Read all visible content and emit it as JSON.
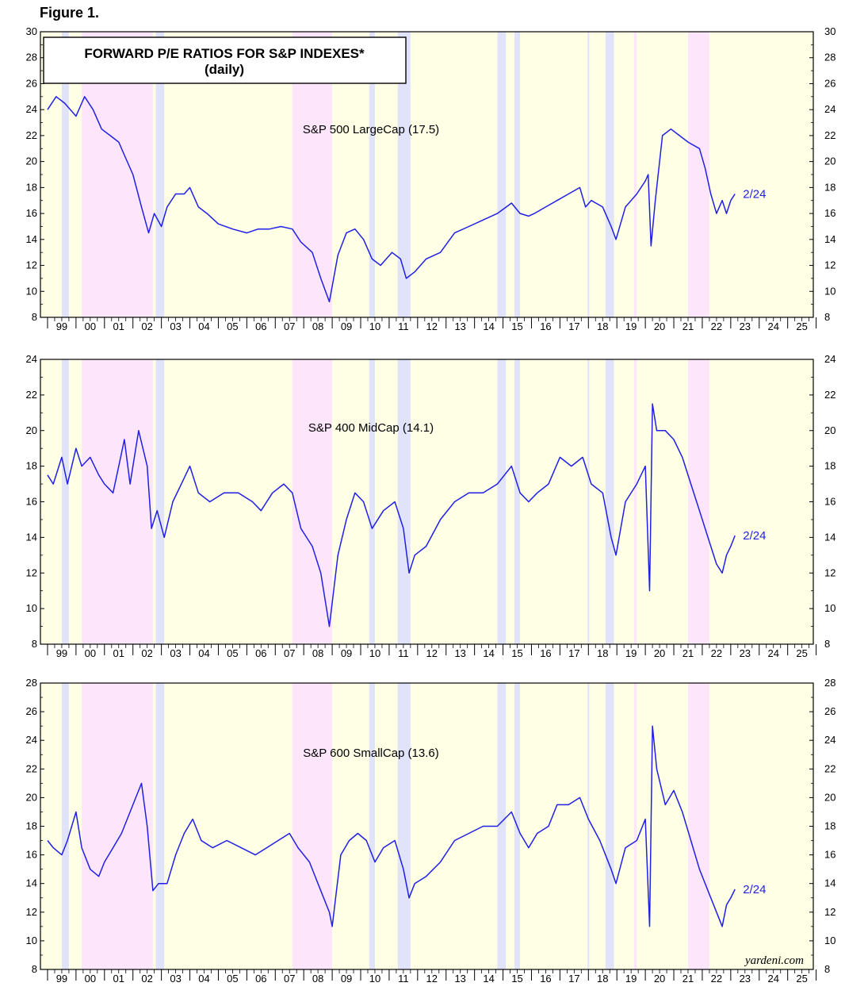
{
  "figure_label": "Figure 1.",
  "title": "FORWARD P/E RATIOS FOR S&P INDEXES*",
  "subtitle": "(daily)",
  "credit": "yardeni.com",
  "colors": {
    "line": "#1f1fe6",
    "background": "#ffffe6",
    "pink_band": "#fde6fb",
    "blue_band": "#e1e3fb",
    "end_label": "#1f1fe6"
  },
  "chart_data": [
    {
      "type": "line",
      "series": [
        {
          "name": "S&P 500 LargeCap (17.5)",
          "end_label": "2/24",
          "x": [
            1999.0,
            1999.3,
            1999.6,
            2000.0,
            2000.3,
            2000.6,
            2000.9,
            2001.2,
            2001.5,
            2001.7,
            2002.0,
            2002.3,
            2002.55,
            2002.75,
            2003.0,
            2003.2,
            2003.5,
            2003.8,
            2004.0,
            2004.3,
            2004.6,
            2005.0,
            2005.5,
            2006.0,
            2006.4,
            2006.8,
            2007.2,
            2007.6,
            2007.9,
            2008.3,
            2008.6,
            2008.9,
            2009.2,
            2009.5,
            2009.8,
            2010.1,
            2010.4,
            2010.7,
            2011.1,
            2011.4,
            2011.6,
            2011.9,
            2012.3,
            2012.8,
            2013.3,
            2013.8,
            2014.3,
            2014.8,
            2015.3,
            2015.6,
            2015.9,
            2016.1,
            2016.5,
            2016.9,
            2017.3,
            2017.7,
            2017.9,
            2018.1,
            2018.5,
            2018.8,
            2018.97,
            2019.3,
            2019.7,
            2020.0,
            2020.1,
            2020.2,
            2020.35,
            2020.6,
            2020.9,
            2021.2,
            2021.5,
            2021.9,
            2022.1,
            2022.3,
            2022.5,
            2022.7,
            2022.85,
            2023.0,
            2023.15
          ],
          "y": [
            24.0,
            25.0,
            24.5,
            23.5,
            25.0,
            24.0,
            22.5,
            22.0,
            21.5,
            20.5,
            19.0,
            16.5,
            14.5,
            16.0,
            15.0,
            16.5,
            17.5,
            17.5,
            18.0,
            16.5,
            16.0,
            15.2,
            14.8,
            14.5,
            14.8,
            14.8,
            15.0,
            14.8,
            13.8,
            13.0,
            11.0,
            9.2,
            12.8,
            14.5,
            14.8,
            14.0,
            12.5,
            12.0,
            13.0,
            12.5,
            11.0,
            11.5,
            12.5,
            13.0,
            14.5,
            15.0,
            15.5,
            16.0,
            16.8,
            16.0,
            15.8,
            16.0,
            16.5,
            17.0,
            17.5,
            18.0,
            16.5,
            17.0,
            16.5,
            15.0,
            14.0,
            16.5,
            17.5,
            18.5,
            19.0,
            13.5,
            17.0,
            22.0,
            22.5,
            22.0,
            21.5,
            21.0,
            19.5,
            17.5,
            16.0,
            17.0,
            16.0,
            17.0,
            17.5
          ]
        }
      ],
      "y_range": [
        8,
        30
      ],
      "y_ticks": [
        8,
        10,
        12,
        14,
        16,
        18,
        20,
        22,
        24,
        26,
        28,
        30
      ],
      "year_labels": [
        "99",
        "00",
        "01",
        "02",
        "03",
        "04",
        "05",
        "06",
        "07",
        "08",
        "09",
        "10",
        "11",
        "12",
        "13",
        "14",
        "15",
        "16",
        "17",
        "18",
        "19",
        "20",
        "21",
        "22",
        "23",
        "24",
        "25"
      ]
    },
    {
      "type": "line",
      "series": [
        {
          "name": "S&P 400 MidCap (14.1)",
          "end_label": "2/24",
          "x": [
            1999.0,
            1999.2,
            1999.5,
            1999.7,
            2000.0,
            2000.2,
            2000.5,
            2000.8,
            2001.0,
            2001.3,
            2001.5,
            2001.7,
            2001.9,
            2002.2,
            2002.5,
            2002.65,
            2002.85,
            2003.1,
            2003.4,
            2003.7,
            2004.0,
            2004.3,
            2004.7,
            2005.2,
            2005.7,
            2006.2,
            2006.5,
            2006.9,
            2007.3,
            2007.6,
            2007.9,
            2008.3,
            2008.6,
            2008.9,
            2009.2,
            2009.5,
            2009.8,
            2010.1,
            2010.4,
            2010.8,
            2011.2,
            2011.5,
            2011.7,
            2011.9,
            2012.3,
            2012.8,
            2013.3,
            2013.8,
            2014.3,
            2014.8,
            2015.3,
            2015.6,
            2015.9,
            2016.2,
            2016.6,
            2017.0,
            2017.4,
            2017.8,
            2018.1,
            2018.5,
            2018.8,
            2018.97,
            2019.3,
            2019.7,
            2020.0,
            2020.15,
            2020.25,
            2020.4,
            2020.7,
            2021.0,
            2021.3,
            2021.6,
            2021.9,
            2022.2,
            2022.5,
            2022.7,
            2022.85,
            2023.0,
            2023.15
          ],
          "y": [
            17.5,
            17.0,
            18.5,
            17.0,
            19.0,
            18.0,
            18.5,
            17.5,
            17.0,
            16.5,
            18.0,
            19.5,
            17.0,
            20.0,
            18.0,
            14.5,
            15.5,
            14.0,
            16.0,
            17.0,
            18.0,
            16.5,
            16.0,
            16.5,
            16.5,
            16.0,
            15.5,
            16.5,
            17.0,
            16.5,
            14.5,
            13.5,
            12.0,
            9.0,
            13.0,
            15.0,
            16.5,
            16.0,
            14.5,
            15.5,
            16.0,
            14.5,
            12.0,
            13.0,
            13.5,
            15.0,
            16.0,
            16.5,
            16.5,
            17.0,
            18.0,
            16.5,
            16.0,
            16.5,
            17.0,
            18.5,
            18.0,
            18.5,
            17.0,
            16.5,
            14.0,
            13.0,
            16.0,
            17.0,
            18.0,
            11.0,
            21.5,
            20.0,
            20.0,
            19.5,
            18.5,
            17.0,
            15.5,
            14.0,
            12.5,
            12.0,
            13.0,
            13.5,
            14.1
          ]
        }
      ],
      "y_range": [
        8,
        24
      ],
      "y_ticks": [
        8,
        10,
        12,
        14,
        16,
        18,
        20,
        22,
        24
      ],
      "year_labels": [
        "99",
        "00",
        "01",
        "02",
        "03",
        "04",
        "05",
        "06",
        "07",
        "08",
        "09",
        "10",
        "11",
        "12",
        "13",
        "14",
        "15",
        "16",
        "17",
        "18",
        "19",
        "20",
        "21",
        "22",
        "23",
        "24",
        "25"
      ]
    },
    {
      "type": "line",
      "series": [
        {
          "name": "S&P 600 SmallCap (13.6)",
          "end_label": "2/24",
          "x": [
            1999.0,
            1999.2,
            1999.5,
            1999.7,
            2000.0,
            2000.2,
            2000.5,
            2000.8,
            2001.0,
            2001.3,
            2001.6,
            2001.8,
            2002.0,
            2002.3,
            2002.5,
            2002.7,
            2002.9,
            2003.2,
            2003.5,
            2003.8,
            2004.1,
            2004.4,
            2004.8,
            2005.3,
            2005.8,
            2006.3,
            2006.7,
            2007.1,
            2007.5,
            2007.8,
            2008.2,
            2008.5,
            2008.9,
            2009.0,
            2009.3,
            2009.6,
            2009.9,
            2010.2,
            2010.5,
            2010.8,
            2011.2,
            2011.5,
            2011.7,
            2011.9,
            2012.3,
            2012.8,
            2013.3,
            2013.8,
            2014.3,
            2014.8,
            2015.3,
            2015.6,
            2015.9,
            2016.2,
            2016.6,
            2016.9,
            2017.3,
            2017.7,
            2018.0,
            2018.4,
            2018.8,
            2018.97,
            2019.3,
            2019.7,
            2020.0,
            2020.15,
            2020.25,
            2020.4,
            2020.7,
            2021.0,
            2021.3,
            2021.6,
            2021.9,
            2022.2,
            2022.5,
            2022.7,
            2022.85,
            2023.0,
            2023.15
          ],
          "y": [
            17.0,
            16.5,
            16.0,
            17.0,
            19.0,
            16.5,
            15.0,
            14.5,
            15.5,
            16.5,
            17.5,
            18.5,
            19.5,
            21.0,
            18.0,
            13.5,
            14.0,
            14.0,
            16.0,
            17.5,
            18.5,
            17.0,
            16.5,
            17.0,
            16.5,
            16.0,
            16.5,
            17.0,
            17.5,
            16.5,
            15.5,
            14.0,
            12.0,
            11.0,
            16.0,
            17.0,
            17.5,
            17.0,
            15.5,
            16.5,
            17.0,
            15.0,
            13.0,
            14.0,
            14.5,
            15.5,
            17.0,
            17.5,
            18.0,
            18.0,
            19.0,
            17.5,
            16.5,
            17.5,
            18.0,
            19.5,
            19.5,
            20.0,
            18.5,
            17.0,
            15.0,
            14.0,
            16.5,
            17.0,
            18.5,
            11.0,
            25.0,
            22.0,
            19.5,
            20.5,
            19.0,
            17.0,
            15.0,
            13.5,
            12.0,
            11.0,
            12.5,
            13.0,
            13.6
          ]
        }
      ],
      "y_range": [
        8,
        28
      ],
      "y_ticks": [
        8,
        10,
        12,
        14,
        16,
        18,
        20,
        22,
        24,
        26,
        28
      ],
      "year_labels": [
        "99",
        "00",
        "01",
        "02",
        "03",
        "04",
        "05",
        "06",
        "07",
        "08",
        "09",
        "10",
        "11",
        "12",
        "13",
        "14",
        "15",
        "16",
        "17",
        "18",
        "19",
        "20",
        "21",
        "22",
        "23",
        "24",
        "25"
      ]
    }
  ],
  "x_range": [
    1998.75,
    2025.9
  ],
  "shaded_periods": [
    {
      "start": 1999.5,
      "end": 1999.75,
      "kind": "blue"
    },
    {
      "start": 2000.2,
      "end": 2002.7,
      "kind": "pink"
    },
    {
      "start": 2002.8,
      "end": 2003.1,
      "kind": "blue"
    },
    {
      "start": 2007.6,
      "end": 2009.0,
      "kind": "pink"
    },
    {
      "start": 2010.3,
      "end": 2010.5,
      "kind": "blue"
    },
    {
      "start": 2011.3,
      "end": 2011.75,
      "kind": "blue"
    },
    {
      "start": 2014.8,
      "end": 2015.1,
      "kind": "blue"
    },
    {
      "start": 2015.4,
      "end": 2015.6,
      "kind": "blue"
    },
    {
      "start": 2017.97,
      "end": 2018.03,
      "kind": "blue"
    },
    {
      "start": 2018.6,
      "end": 2018.9,
      "kind": "blue"
    },
    {
      "start": 2019.6,
      "end": 2019.7,
      "kind": "pink"
    },
    {
      "start": 2021.5,
      "end": 2022.25,
      "kind": "pink"
    }
  ]
}
